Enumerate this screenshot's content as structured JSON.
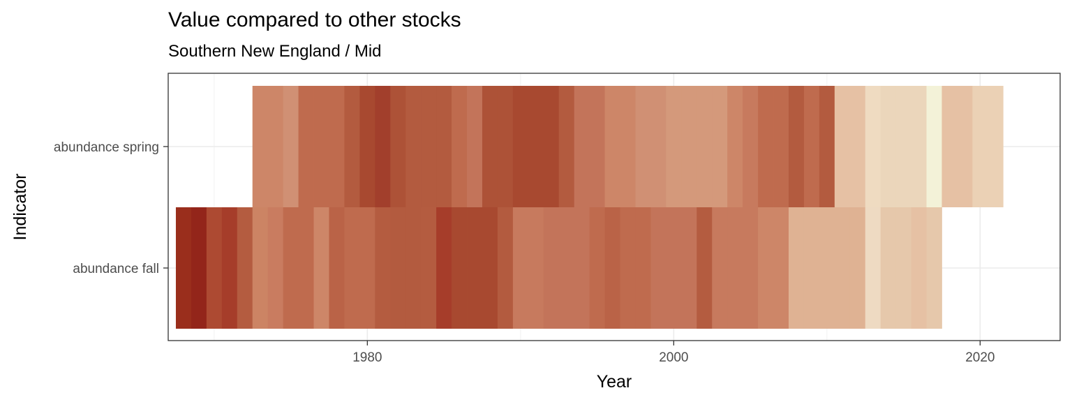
{
  "chart_data": {
    "type": "heatmap",
    "title": "Value compared to other stocks",
    "subtitle": "Southern New England / Mid",
    "xlabel": "Year",
    "ylabel": "Indicator",
    "xlim": [
      1967,
      2023
    ],
    "x_ticks": [
      "1980",
      "2000",
      "2020"
    ],
    "x_tick_values": [
      1980,
      2000,
      2020
    ],
    "grid": true,
    "legend": "none",
    "rows": [
      {
        "indicator": "abundance spring",
        "start_year": 1973,
        "colors": [
          "#cd8668",
          "#cd8668",
          "#d09074",
          "#bf6b4e",
          "#bf6b4e",
          "#bf6b4e",
          "#b35b3f",
          "#a84930",
          "#a23f2c",
          "#ad5237",
          "#b35b3f",
          "#b35b3f",
          "#b35b3f",
          "#bf6b4e",
          "#c3745a",
          "#ad5237",
          "#ad5237",
          "#a84930",
          "#a84930",
          "#a84930",
          "#b35b3f",
          "#c3745a",
          "#c3745a",
          "#cd8668",
          "#cd8668",
          "#d09074",
          "#d09074",
          "#d4997b",
          "#d4997b",
          "#d4997b",
          "#d4997b",
          "#cd8668",
          "#c77a5e",
          "#bf6b4e",
          "#bf6b4e",
          "#b35b3f",
          "#bf6b4e",
          "#b35b3f",
          "#e6c1a4",
          "#e6c1a4",
          "#efdbc1",
          "#ebd6bb",
          "#ebd6bb",
          "#ebd6bb",
          "#f3f2d8",
          "#e6c1a4",
          "#e6c1a4",
          "#ebd1b5",
          "#ebd1b5"
        ]
      },
      {
        "indicator": "abundance fall",
        "start_year": 1968,
        "colors": [
          "#9a2e1c",
          "#93251a",
          "#ad4a32",
          "#a63d2a",
          "#b45c40",
          "#cc8464",
          "#c97c60",
          "#bf6b4e",
          "#bf6b4e",
          "#cd8668",
          "#ba6347",
          "#bf6b4e",
          "#bf6b4e",
          "#b45c40",
          "#b35b3f",
          "#b35b3f",
          "#b45c40",
          "#a63d2a",
          "#a84930",
          "#a84930",
          "#a84930",
          "#b35b3f",
          "#c77a5e",
          "#c77a5e",
          "#c3745a",
          "#c3745a",
          "#c3745a",
          "#bf6b4e",
          "#ba6347",
          "#bf6b4e",
          "#bf6b4e",
          "#c3745a",
          "#c3745a",
          "#c3745a",
          "#b45c40",
          "#c77a5e",
          "#c77a5e",
          "#c77a5e",
          "#cd8668",
          "#cd8668",
          "#dfb293",
          "#dfb293",
          "#dfb293",
          "#dfb293",
          "#dfb293",
          "#eedac2",
          "#e6c8ab",
          "#e6c8ab",
          "#e6c1a4",
          "#e6c8ab"
        ]
      }
    ]
  }
}
